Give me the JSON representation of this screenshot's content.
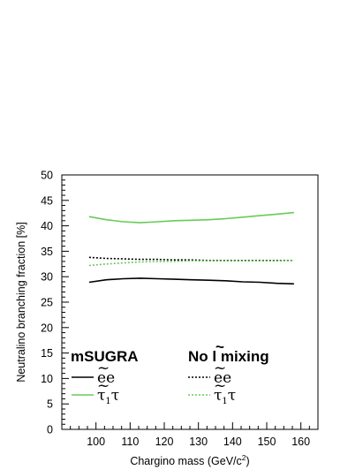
{
  "chart_data": {
    "type": "line",
    "xlabel": "Chargino mass (GeV/c",
    "xlabel_sup": "2",
    "xlabel_end": ")",
    "ylabel": "Neutralino branching fraction [%]",
    "xlim": [
      90,
      165
    ],
    "ylim": [
      0,
      50
    ],
    "x_ticks": [
      "100",
      "110",
      "120",
      "130",
      "140",
      "150",
      "160"
    ],
    "y_ticks": [
      "0",
      "5",
      "10",
      "15",
      "20",
      "25",
      "30",
      "35",
      "40",
      "45",
      "50"
    ],
    "grid": false,
    "legend_groups": [
      {
        "title": "mSUGRA",
        "position": "bottom-left"
      },
      {
        "title": "No ",
        "title_mark": "l",
        "title_end": " mixing",
        "position": "bottom-right"
      }
    ],
    "legend_labels": [
      {
        "base": "e",
        "end": "e"
      },
      {
        "base": "τ",
        "sub": "1",
        "end": "τ"
      }
    ],
    "series": [
      {
        "group": "mSUGRA",
        "decay": "ee",
        "color": "#000000",
        "style": "solid",
        "x": [
          98,
          103,
          108,
          113,
          118,
          123,
          128,
          133,
          138,
          143,
          148,
          153,
          158
        ],
        "y": [
          28.9,
          29.4,
          29.6,
          29.7,
          29.6,
          29.5,
          29.4,
          29.3,
          29.2,
          29.0,
          28.9,
          28.7,
          28.6
        ]
      },
      {
        "group": "mSUGRA",
        "decay": "τ1τ",
        "color": "#66cc55",
        "style": "solid",
        "x": [
          98,
          103,
          108,
          113,
          118,
          123,
          128,
          133,
          138,
          143,
          148,
          153,
          158
        ],
        "y": [
          41.8,
          41.2,
          40.8,
          40.6,
          40.8,
          41.0,
          41.1,
          41.2,
          41.4,
          41.7,
          42.0,
          42.3,
          42.6
        ]
      },
      {
        "group": "No l mixing",
        "decay": "ee",
        "color": "#000000",
        "style": "dotted",
        "x": [
          98,
          103,
          108,
          113,
          118,
          123,
          128,
          133,
          138,
          143,
          148,
          153,
          158
        ],
        "y": [
          33.8,
          33.6,
          33.5,
          33.4,
          33.4,
          33.3,
          33.3,
          33.2,
          33.2,
          33.2,
          33.2,
          33.2,
          33.2
        ]
      },
      {
        "group": "No l mixing",
        "decay": "τ1τ",
        "color": "#66cc55",
        "style": "dotted",
        "x": [
          98,
          103,
          108,
          113,
          118,
          123,
          128,
          133,
          138,
          143,
          148,
          153,
          158
        ],
        "y": [
          32.2,
          32.5,
          32.7,
          32.9,
          33.0,
          33.0,
          33.1,
          33.1,
          33.1,
          33.1,
          33.1,
          33.1,
          33.2
        ]
      }
    ]
  }
}
